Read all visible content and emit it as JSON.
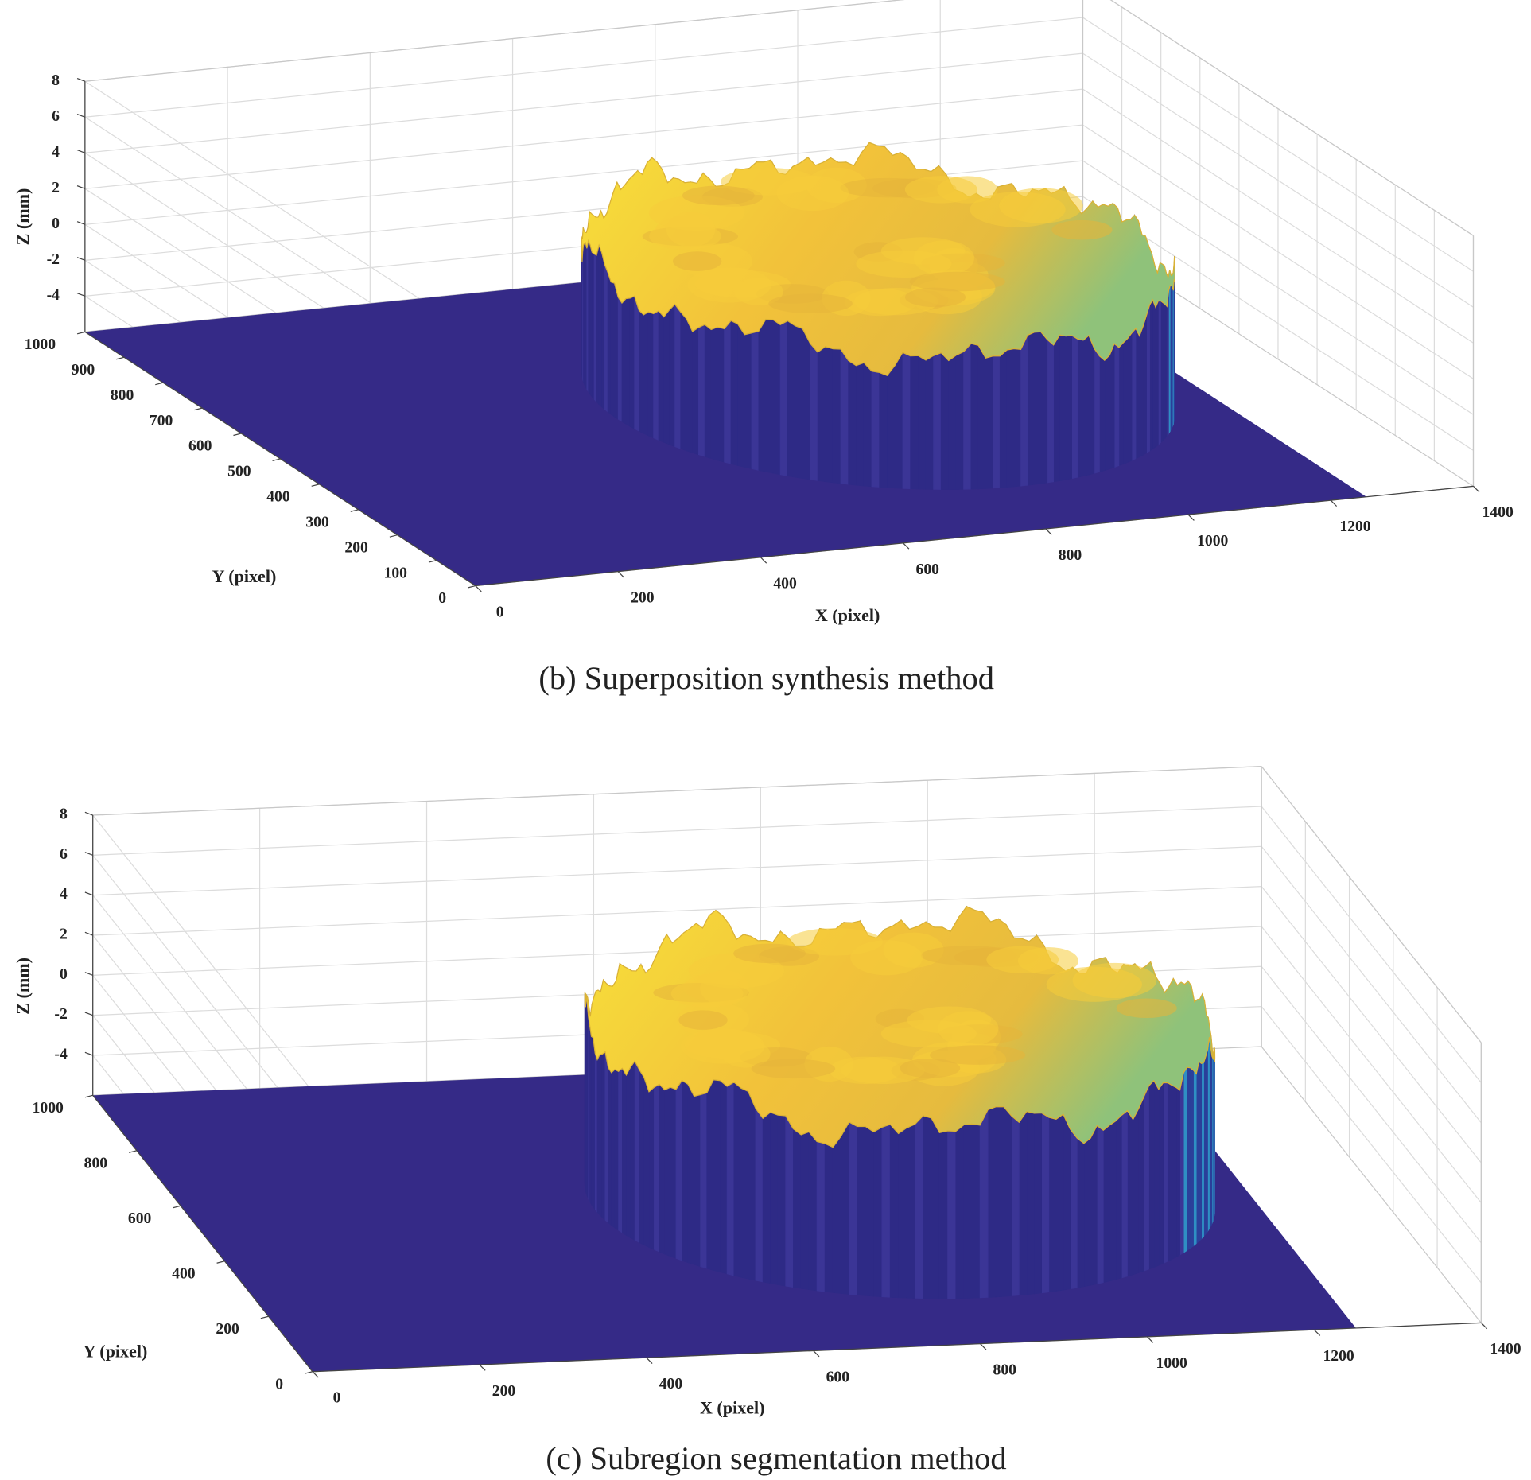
{
  "chart_data": [
    {
      "type": "surface3d",
      "title": "(b) Superposition synthesis method",
      "xlabel": "X (pixel)",
      "ylabel": "Y (pixel)",
      "zlabel": "Z (mm)",
      "xlim": [
        0,
        1400
      ],
      "ylim": [
        0,
        1000
      ],
      "zlim": [
        -6,
        8
      ],
      "xticks": [
        0,
        200,
        400,
        600,
        800,
        1000,
        1200,
        1400
      ],
      "yticks": [
        0,
        100,
        200,
        300,
        400,
        500,
        600,
        700,
        800,
        900,
        1000
      ],
      "zticks": [
        -4,
        -2,
        0,
        2,
        4,
        6,
        8
      ],
      "grid": true
    },
    {
      "type": "surface3d",
      "title": "(c) Subregion segmentation method",
      "xlabel": "X (pixel)",
      "ylabel": "Y (pixel)",
      "zlabel": "Z (mm)",
      "xlim": [
        0,
        1400
      ],
      "ylim": [
        0,
        1000
      ],
      "zlim": [
        -6,
        8
      ],
      "xticks": [
        0,
        200,
        400,
        600,
        800,
        1000,
        1200,
        1400
      ],
      "yticks": [
        0,
        200,
        400,
        600,
        800,
        1000
      ],
      "zticks": [
        -4,
        -2,
        0,
        2,
        4,
        6,
        8
      ],
      "grid": true
    }
  ]
}
